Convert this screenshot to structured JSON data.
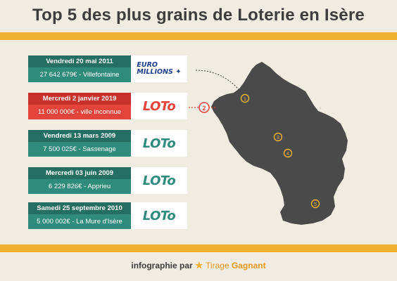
{
  "header": {
    "title": "Top 5 des plus grains de Loterie en Isère"
  },
  "cards": [
    {
      "date": "Vendredi 20 mai 2011",
      "amount": "27 642 679€ - Villefontaine",
      "logo": "euromillions-logo",
      "logo_line1": "EURO",
      "logo_line2": "MILLIONS"
    },
    {
      "date": "Mercredi 2 janvier 2019",
      "amount": "11 000 000€ - ville inconnue",
      "logo": "loto-logo",
      "logo_text": "LOTo"
    },
    {
      "date": "Vendredi 13 mars 2009",
      "amount": "7 500 025€ - Sassenage",
      "logo": "loto-logo",
      "logo_text": "LOTo"
    },
    {
      "date": "Mercredi 03 juin 2009",
      "amount": "6 229 826€ - Apprieu",
      "logo": "loto-logo",
      "logo_text": "LOTo"
    },
    {
      "date": "Samedi 25 septembre 2010",
      "amount": "5 000 002€ - La Mure d'Isère",
      "logo": "loto-logo",
      "logo_text": "LOTo"
    }
  ],
  "map": {
    "region": "Isère",
    "markers": [
      "1",
      "2",
      "3",
      "4",
      "5"
    ]
  },
  "footer": {
    "prefix": "infographie par",
    "brand_part1": "Tirage",
    "brand_part2": "Gagnant"
  },
  "colors": {
    "teal": "#2f8b7b",
    "red": "#e4443a",
    "gold": "#f0b132",
    "map": "#4a4a4a",
    "background": "#f1ece2"
  }
}
